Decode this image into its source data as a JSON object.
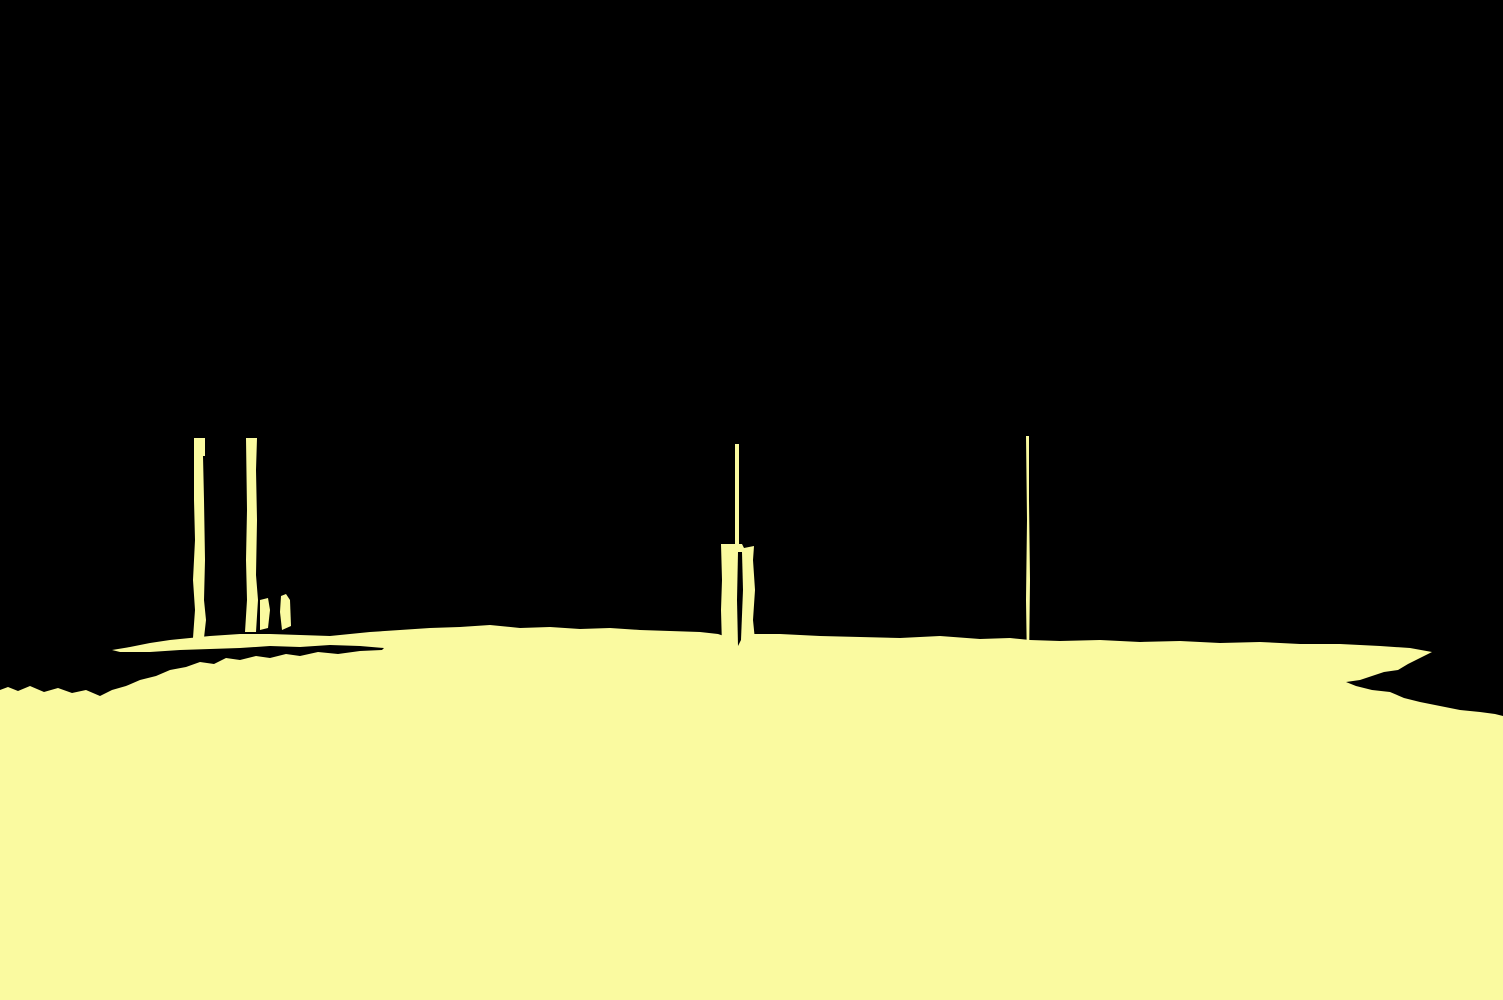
{
  "image": {
    "kind": "binary segmentation mask",
    "classes": [
      {
        "name": "background",
        "color": "#000000"
      },
      {
        "name": "foreground",
        "color": "#FAFAA0"
      }
    ],
    "objects": [
      {
        "name": "ground-region",
        "class": "foreground"
      },
      {
        "name": "left-pole-a",
        "class": "foreground"
      },
      {
        "name": "left-pole-b",
        "class": "foreground"
      },
      {
        "name": "left-pole-fragment",
        "class": "foreground"
      },
      {
        "name": "center-thin-pole",
        "class": "foreground"
      },
      {
        "name": "center-box-post",
        "class": "foreground"
      },
      {
        "name": "right-thin-pole",
        "class": "foreground"
      }
    ]
  }
}
